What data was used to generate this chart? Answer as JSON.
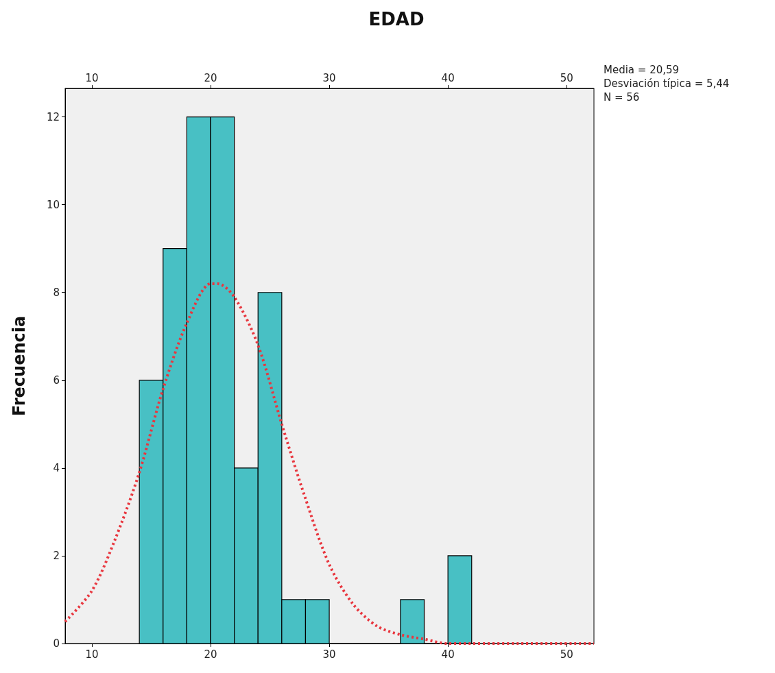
{
  "chart_data": {
    "type": "histogram",
    "title": "EDAD",
    "ylabel": "Frecuencia",
    "annotations": [
      "Media = 20,59",
      "Desviación típica = 5,44",
      "N = 56"
    ],
    "bins": [
      14,
      16,
      18,
      20,
      22,
      24,
      26,
      28,
      30,
      32,
      34,
      36,
      38,
      40,
      42
    ],
    "values": [
      6,
      9,
      12,
      12,
      4,
      8,
      1,
      1,
      0,
      0,
      0,
      1,
      0,
      2
    ],
    "color": "#48c0c4",
    "series": [
      {
        "type": "line",
        "color": "#e8363e",
        "line_style": "dotted",
        "marker": "none",
        "x": [
          7.75,
          10,
          12,
          14,
          16,
          18,
          20,
          20.6,
          22,
          24,
          26,
          28,
          30,
          32,
          34,
          36,
          38,
          40,
          42,
          46,
          52.3
        ],
        "values": [
          0.5,
          1.2,
          2.4,
          3.9,
          5.8,
          7.3,
          8.2,
          8.2,
          7.9,
          6.8,
          5.0,
          3.3,
          1.8,
          0.9,
          0.4,
          0.2,
          0.1,
          0,
          0,
          0,
          0
        ]
      }
    ],
    "xlim": [
      7.75,
      52.3
    ],
    "xticks": [
      10,
      20,
      30,
      40,
      50
    ],
    "x2lim": [
      7.75,
      52.3
    ],
    "x2ticks": [
      10,
      20,
      30,
      40,
      50
    ],
    "ylim": [
      0,
      12.65
    ],
    "yticks": [
      0,
      2,
      4,
      6,
      8,
      10,
      12
    ],
    "grid": false
  }
}
